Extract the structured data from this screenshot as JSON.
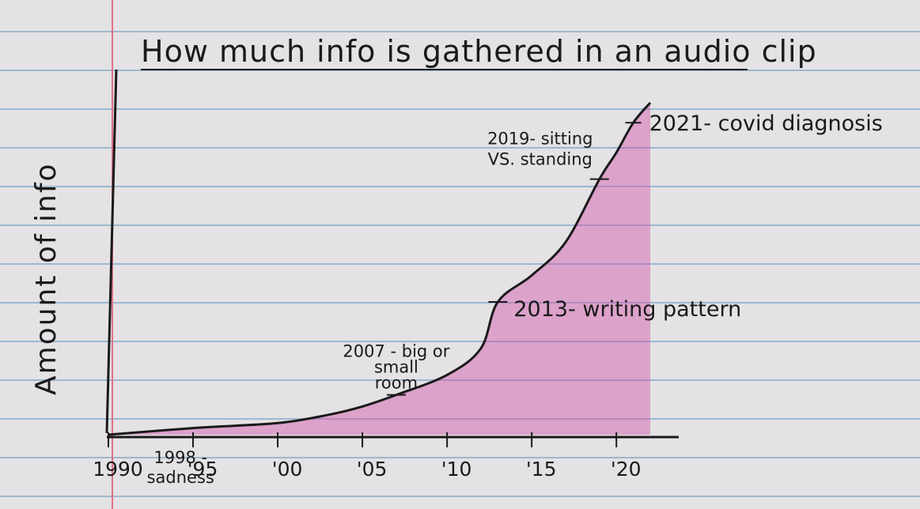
{
  "chart_data": {
    "type": "area",
    "title": "How much info is gathered in an audio clip",
    "xlabel": "",
    "ylabel": "Amount of info",
    "x_tick_labels": [
      "1990",
      "'95",
      "'00",
      "'05",
      "'10",
      "'15",
      "'20"
    ],
    "x_tick_values": [
      1990,
      1995,
      2000,
      2005,
      2010,
      2015,
      2020
    ],
    "xlim": [
      1990,
      2022
    ],
    "ylim": [
      0,
      100
    ],
    "grid": true,
    "legend": "none",
    "colors": {
      "fill": "#d24aa6",
      "line": "#1a1a1a",
      "rule": "#9db8cf",
      "margin": "#e07088",
      "paper": "#e4e2e4"
    },
    "series": [
      {
        "x": [
          1990,
          1995,
          2000,
          2003,
          2005,
          2007,
          2010,
          2012,
          2013,
          2015,
          2017,
          2019,
          2020,
          2021,
          2022
        ],
        "y": [
          0,
          2,
          3.5,
          6,
          8.5,
          12,
          18,
          26,
          40,
          48,
          58,
          77,
          85,
          94,
          100
        ]
      }
    ],
    "annotations": [
      {
        "x": 1998,
        "lines": [
          "1998 -",
          "sadness"
        ]
      },
      {
        "x": 2007,
        "lines": [
          "2007 - big or",
          "small",
          "room"
        ]
      },
      {
        "x": 2013,
        "lines": [
          "2013- writing pattern"
        ]
      },
      {
        "x": 2019,
        "lines": [
          "2019- sitting",
          "VS. standing"
        ]
      },
      {
        "x": 2021,
        "lines": [
          "2021- covid diagnosis"
        ]
      }
    ]
  }
}
